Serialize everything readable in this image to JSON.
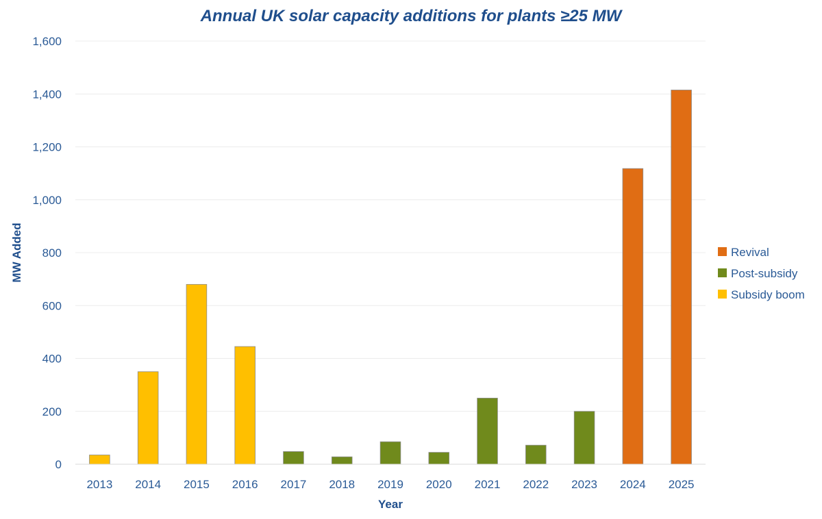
{
  "chart_data": {
    "type": "bar",
    "title": "Annual UK solar capacity additions for plants ≥25 MW",
    "xlabel": "Year",
    "ylabel": "MW Added",
    "ylim": [
      0,
      1600
    ],
    "yticks": [
      0,
      200,
      400,
      600,
      800,
      1000,
      1200,
      1400,
      1600
    ],
    "ytick_labels": [
      "0",
      "200",
      "400",
      "600",
      "800",
      "1,000",
      "1,200",
      "1,400",
      "1,600"
    ],
    "categories": [
      "2013",
      "2014",
      "2015",
      "2016",
      "2017",
      "2018",
      "2019",
      "2020",
      "2021",
      "2022",
      "2023",
      "2024",
      "2025"
    ],
    "values": [
      35,
      350,
      680,
      445,
      48,
      28,
      85,
      45,
      250,
      72,
      200,
      1118,
      1415
    ],
    "bar_groups": [
      "Subsidy boom",
      "Subsidy boom",
      "Subsidy boom",
      "Subsidy boom",
      "Post-subsidy",
      "Post-subsidy",
      "Post-subsidy",
      "Post-subsidy",
      "Post-subsidy",
      "Post-subsidy",
      "Post-subsidy",
      "Revival",
      "Revival"
    ],
    "legend": [
      {
        "name": "Revival",
        "color": "#e06d14"
      },
      {
        "name": "Post-subsidy",
        "color": "#708a1c"
      },
      {
        "name": "Subsidy boom",
        "color": "#ffbf00"
      }
    ],
    "legend_position": "right",
    "grid": true
  }
}
